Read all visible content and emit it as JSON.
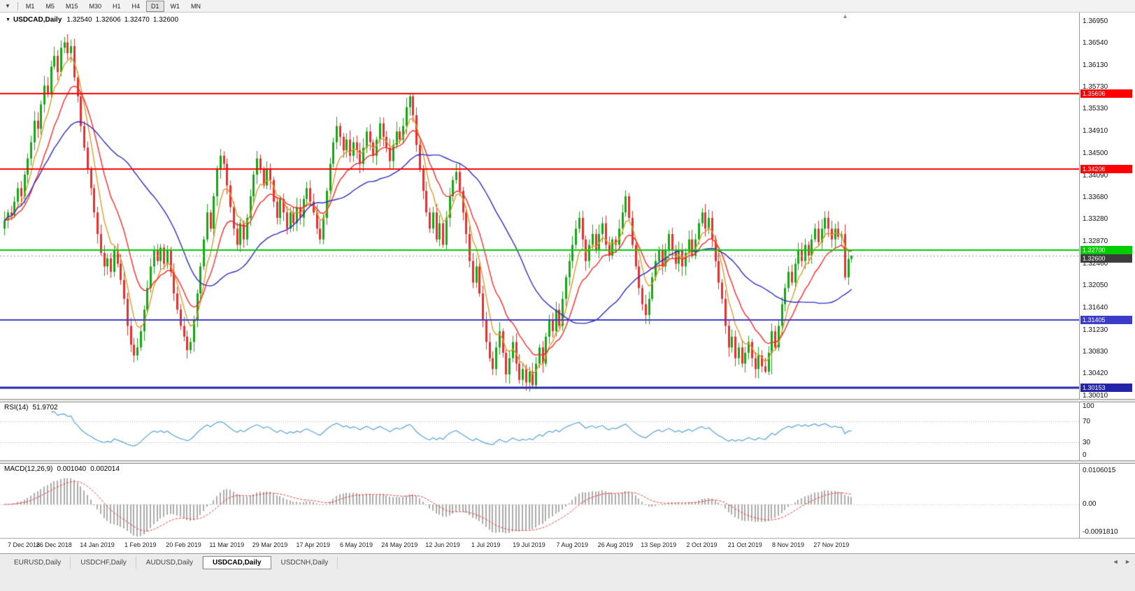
{
  "toolbar": {
    "menu_icon": "▼",
    "timeframes": [
      {
        "label": "M1",
        "active": false
      },
      {
        "label": "M5",
        "active": false
      },
      {
        "label": "M15",
        "active": false
      },
      {
        "label": "M30",
        "active": false
      },
      {
        "label": "H1",
        "active": false
      },
      {
        "label": "H4",
        "active": false
      },
      {
        "label": "D1",
        "active": true
      },
      {
        "label": "W1",
        "active": false
      },
      {
        "label": "MN",
        "active": false
      }
    ]
  },
  "chart_header": {
    "marker_icon": "▼",
    "symbol": "USDCAD,Daily",
    "open": "1.32540",
    "high": "1.32606",
    "low": "1.32470",
    "close": "1.32600"
  },
  "icons": {
    "chart_shift": "▴",
    "tab_scroll_left": "◄",
    "tab_scroll_right": "►"
  },
  "price_axis": {
    "ticks": [
      "1.36950",
      "1.36540",
      "1.36130",
      "1.35730",
      "1.35330",
      "1.34910",
      "1.34500",
      "1.34090",
      "1.33680",
      "1.33280",
      "1.32870",
      "1.32460",
      "1.32050",
      "1.31640",
      "1.31230",
      "1.30830",
      "1.30420",
      "1.30010"
    ]
  },
  "bottom_tabs": [
    {
      "label": "EURUSD,Daily",
      "active": false
    },
    {
      "label": "USDCHF,Daily",
      "active": false
    },
    {
      "label": "AUDUSD,Daily",
      "active": false
    },
    {
      "label": "USDCAD,Daily",
      "active": true
    },
    {
      "label": "USDCNH,Daily",
      "active": false
    }
  ],
  "chart_data": {
    "type": "candlestick",
    "symbol": "USDCAD",
    "timeframe": "Daily",
    "title": "USDCAD,Daily",
    "ylim": [
      1.2996,
      1.3705
    ],
    "up_color": "#14A614",
    "down_color": "#E43030",
    "closes": [
      1.3325,
      1.334,
      1.3335,
      1.336,
      1.3385,
      1.337,
      1.341,
      1.344,
      1.347,
      1.351,
      1.3495,
      1.354,
      1.3575,
      1.356,
      1.361,
      1.363,
      1.36,
      1.3645,
      1.3655,
      1.3635,
      1.3648,
      1.359,
      1.3555,
      1.35,
      1.346,
      1.342,
      1.3385,
      1.334,
      1.33,
      1.3265,
      1.324,
      1.3255,
      1.323,
      1.327,
      1.3245,
      1.3215,
      1.318,
      1.313,
      1.3095,
      1.3075,
      1.309,
      1.312,
      1.316,
      1.32,
      1.324,
      1.327,
      1.325,
      1.3275,
      1.3245,
      1.327,
      1.323,
      1.319,
      1.316,
      1.313,
      1.311,
      1.3085,
      1.31,
      1.314,
      1.319,
      1.324,
      1.329,
      1.334,
      1.331,
      1.337,
      1.342,
      1.3445,
      1.343,
      1.339,
      1.335,
      1.331,
      1.328,
      1.332,
      1.329,
      1.333,
      1.337,
      1.341,
      1.344,
      1.342,
      1.339,
      1.342,
      1.34,
      1.336,
      1.333,
      1.3365,
      1.334,
      1.331,
      1.334,
      1.332,
      1.335,
      1.333,
      1.3365,
      1.3385,
      1.336,
      1.334,
      1.331,
      1.329,
      1.333,
      1.338,
      1.343,
      1.347,
      1.35,
      1.348,
      1.3455,
      1.3475,
      1.3445,
      1.347,
      1.3455,
      1.343,
      1.346,
      1.349,
      1.347,
      1.3445,
      1.3475,
      1.3505,
      1.348,
      1.346,
      1.3435,
      1.3465,
      1.349,
      1.3475,
      1.35,
      1.3535,
      1.3555,
      1.352,
      1.3465,
      1.342,
      1.338,
      1.334,
      1.331,
      1.334,
      1.329,
      1.332,
      1.328,
      1.333,
      1.337,
      1.34,
      1.3415,
      1.338,
      1.334,
      1.33,
      1.325,
      1.321,
      1.324,
      1.319,
      1.314,
      1.31,
      1.307,
      1.305,
      1.309,
      1.312,
      1.308,
      1.304,
      1.307,
      1.31,
      1.306,
      1.303,
      1.305,
      1.3025,
      1.3045,
      1.302,
      1.306,
      1.309,
      1.306,
      1.311,
      1.314,
      1.312,
      1.316,
      1.313,
      1.318,
      1.322,
      1.325,
      1.328,
      1.331,
      1.333,
      1.329,
      1.325,
      1.328,
      1.33,
      1.327,
      1.33,
      1.332,
      1.328,
      1.326,
      1.329,
      1.328,
      1.331,
      1.334,
      1.337,
      1.333,
      1.328,
      1.324,
      1.32,
      1.317,
      1.315,
      1.318,
      1.322,
      1.325,
      1.327,
      1.324,
      1.327,
      1.33,
      1.327,
      1.3245,
      1.327,
      1.324,
      1.3265,
      1.329,
      1.326,
      1.329,
      1.332,
      1.334,
      1.331,
      1.333,
      1.329,
      1.325,
      1.321,
      1.318,
      1.313,
      1.309,
      1.311,
      1.307,
      1.309,
      1.306,
      1.308,
      1.31,
      1.307,
      1.305,
      1.3075,
      1.3055,
      1.3045,
      1.308,
      1.312,
      1.309,
      1.313,
      1.317,
      1.32,
      1.323,
      1.321,
      1.3245,
      1.327,
      1.325,
      1.328,
      1.326,
      1.329,
      1.331,
      1.3285,
      1.331,
      1.333,
      1.331,
      1.329,
      1.331,
      1.3295,
      1.33,
      1.322,
      1.3254,
      1.326
    ],
    "wick_overrides": {
      "18": {
        "h": 1.3665
      },
      "122": {
        "h": 1.3561
      },
      "159": {
        "l": 1.3016
      },
      "229": {
        "l": 1.3042
      },
      "231": {
        "l": 1.304
      },
      "253": {
        "l": 1.3215
      },
      "255": {
        "o": 1.3254,
        "h": 1.32606,
        "l": 1.3247,
        "c": 1.326
      }
    },
    "moving_averages": [
      {
        "name": "ma-fast",
        "method": "ema",
        "period": 6,
        "color": "#E09A28"
      },
      {
        "name": "ma-medium",
        "method": "ema",
        "period": 14,
        "color": "#FF2828"
      },
      {
        "name": "ma-slow",
        "method": "sma",
        "period": 35,
        "color": "#2A2AC8"
      }
    ],
    "levels": [
      {
        "price": 1.35606,
        "label": "1.35606",
        "color": "#FF0000",
        "width": 2
      },
      {
        "price": 1.34206,
        "label": "1.34206",
        "color": "#FF0000",
        "width": 2
      },
      {
        "price": 1.327,
        "label": "1.32700",
        "color": "#00CC00",
        "width": 2
      },
      {
        "price": 1.31405,
        "label": "1.31405",
        "color": "#3C3CC8",
        "width": 2
      },
      {
        "price": 1.30153,
        "label": "1.30153",
        "color": "#2424A8",
        "width": 3
      }
    ],
    "current_price": {
      "price": 1.326,
      "label": "1.32600",
      "badge_bg": "#3C3C3C",
      "line_color": "#999999"
    },
    "x_labels": [
      {
        "i": 2,
        "label": "7 Dec 2018"
      },
      {
        "i": 15,
        "label": "26 Dec 2018"
      },
      {
        "i": 28,
        "label": "14 Jan 2019"
      },
      {
        "i": 41,
        "label": "1 Feb 2019"
      },
      {
        "i": 54,
        "label": "20 Feb 2019"
      },
      {
        "i": 67,
        "label": "11 Mar 2019"
      },
      {
        "i": 80,
        "label": "29 Mar 2019"
      },
      {
        "i": 93,
        "label": "17 Apr 2019"
      },
      {
        "i": 106,
        "label": "6 May 2019"
      },
      {
        "i": 119,
        "label": "24 May 2019"
      },
      {
        "i": 132,
        "label": "12 Jun 2019"
      },
      {
        "i": 145,
        "label": "1 Jul 2019"
      },
      {
        "i": 158,
        "label": "19 Jul 2019"
      },
      {
        "i": 171,
        "label": "7 Aug 2019"
      },
      {
        "i": 184,
        "label": "26 Aug 2019"
      },
      {
        "i": 197,
        "label": "13 Sep 2019"
      },
      {
        "i": 210,
        "label": "2 Oct 2019"
      },
      {
        "i": 223,
        "label": "21 Oct 2019"
      },
      {
        "i": 236,
        "label": "8 Nov 2019"
      },
      {
        "i": 249,
        "label": "27 Nov 2019"
      }
    ],
    "indicators": {
      "rsi": {
        "label": "RSI(14)",
        "period": 14,
        "value": "51.9702",
        "line_color": "#58A0D8",
        "levels": [
          70,
          30
        ],
        "axis_labels": [
          "100",
          "70",
          "30",
          "0"
        ]
      },
      "macd": {
        "label": "MACD(12,26,9)",
        "fast": 12,
        "slow": 26,
        "signal": 9,
        "main_value": "0.001040",
        "signal_value": "0.002014",
        "axis_labels": [
          "0.0106015",
          "0.00",
          "-0.0091810"
        ],
        "histogram_color": "#ABABAB",
        "signal_color": "#FF3030"
      }
    }
  }
}
